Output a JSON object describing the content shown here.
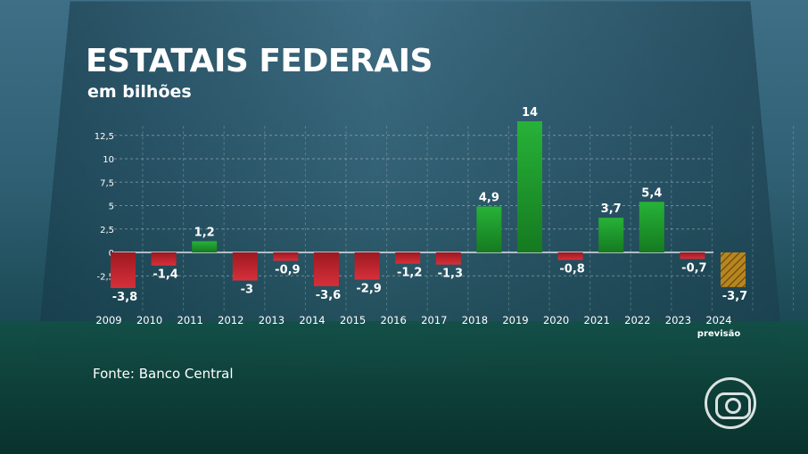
{
  "title": "ESTATAIS FEDERAIS",
  "subtitle": "em bilhões",
  "source": "Fonte: Banco Central",
  "forecast_label": "previsão",
  "colors": {
    "positive": "#1f9a2c",
    "negative": "#c0232b",
    "forecast": "#b8861e"
  },
  "chart_data": {
    "type": "bar",
    "title": "ESTATAIS FEDERAIS",
    "subtitle": "em bilhões",
    "categories": [
      "2009",
      "2010",
      "2011",
      "2012",
      "2013",
      "2014",
      "2015",
      "2016",
      "2017",
      "2018",
      "2019",
      "2020",
      "2021",
      "2022",
      "2023",
      "2024"
    ],
    "values": [
      -3.8,
      -1.4,
      1.2,
      -3,
      -0.9,
      -3.6,
      -2.9,
      -1.2,
      -1.3,
      4.9,
      14,
      -0.8,
      3.7,
      5.4,
      -0.7,
      -3.7
    ],
    "value_labels": [
      "-3,8",
      "-1,4",
      "1,2",
      "-3",
      "-0,9",
      "-3,6",
      "-2,9",
      "-1,2",
      "-1,3",
      "4,9",
      "14",
      "-0,8",
      "3,7",
      "5,4",
      "-0,7",
      "-3,7"
    ],
    "forecast_categories": [
      "2024"
    ],
    "y_ticks": [
      "-2,5",
      "0",
      "2,5",
      "5",
      "7,5",
      "10",
      "12,5"
    ],
    "y_tick_values": [
      -2.5,
      0,
      2.5,
      5,
      7.5,
      10,
      12.5
    ],
    "ylim": [
      -4,
      14
    ],
    "grid": true,
    "legend": "none",
    "xlabel": "",
    "ylabel": ""
  }
}
